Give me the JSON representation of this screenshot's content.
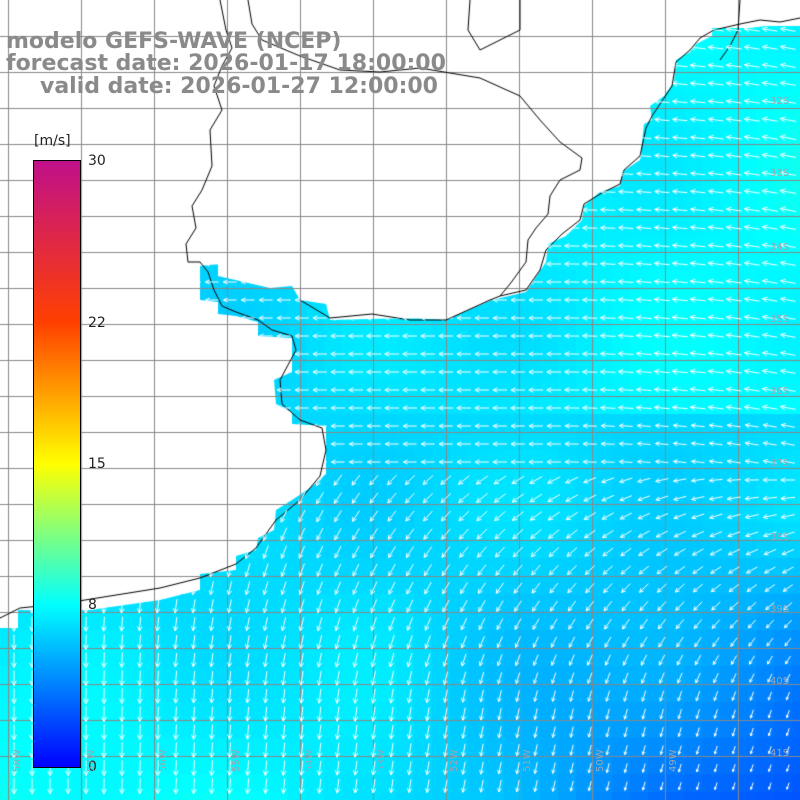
{
  "titles": {
    "line1": "modelo GEFS-WAVE (NCEP)",
    "line2": "forecast date: 2026-01-17 18:00:00",
    "line3": "valid date: 2026-01-27 12:00:00"
  },
  "colorbar": {
    "unit": "[m/s]",
    "ticks": [
      {
        "value": 30,
        "label": "30"
      },
      {
        "value": 22,
        "label": "22"
      },
      {
        "value": 15,
        "label": "15"
      },
      {
        "value": 8,
        "label": "8"
      },
      {
        "value": 0,
        "label": "0"
      }
    ],
    "min": 0,
    "max": 30,
    "stops": [
      {
        "value": 0,
        "color": "#0000ff"
      },
      {
        "value": 8,
        "color": "#00ffff"
      },
      {
        "value": 15,
        "color": "#ffff00"
      },
      {
        "value": 22,
        "color": "#ff4000"
      },
      {
        "value": 30,
        "color": "#c0108a"
      }
    ]
  },
  "lat_labels": [
    "32S",
    "33S",
    "34S",
    "35S",
    "36S",
    "37S",
    "38S",
    "39S",
    "40S",
    "41S"
  ],
  "lon_labels": [
    "58W",
    "57W",
    "56W",
    "55W",
    "54W",
    "53W",
    "52W",
    "51W",
    "50W",
    "49W"
  ],
  "colors": {
    "land": "#ffffff",
    "grid": "#888888",
    "coast": "#000000",
    "arrow": "#ffffff",
    "title": "#8a8a8a"
  }
}
